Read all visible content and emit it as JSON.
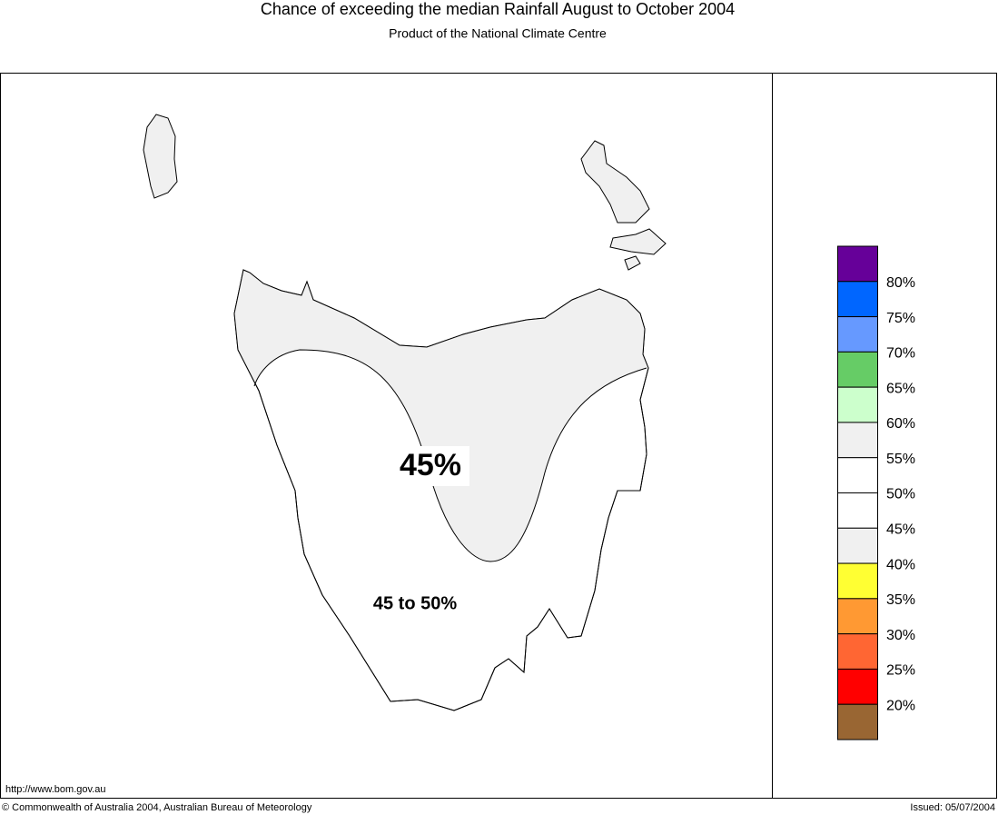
{
  "header": {
    "title": "Chance of exceeding the median Rainfall August to October 2004",
    "subtitle": "Product of the National Climate Centre"
  },
  "map": {
    "labels": [
      "45%",
      "45 to 50%"
    ]
  },
  "legend": {
    "colors": [
      "#660099",
      "#0066ff",
      "#6699ff",
      "#66cc66",
      "#ccffcc",
      "#f0f0f0",
      "#ffffff",
      "#ffffff",
      "#f0f0f0",
      "#ffff33",
      "#ff9933",
      "#ff6633",
      "#ff0000",
      "#996633"
    ],
    "labels": [
      "80%",
      "75%",
      "70%",
      "65%",
      "60%",
      "55%",
      "50%",
      "45%",
      "40%",
      "35%",
      "30%",
      "25%",
      "20%"
    ]
  },
  "footer": {
    "url": "http://www.bom.gov.au",
    "copyright": "© Commonwealth of Australia 2004, Australian Bureau of Meteorology",
    "issued": "Issued: 05/07/2004"
  }
}
